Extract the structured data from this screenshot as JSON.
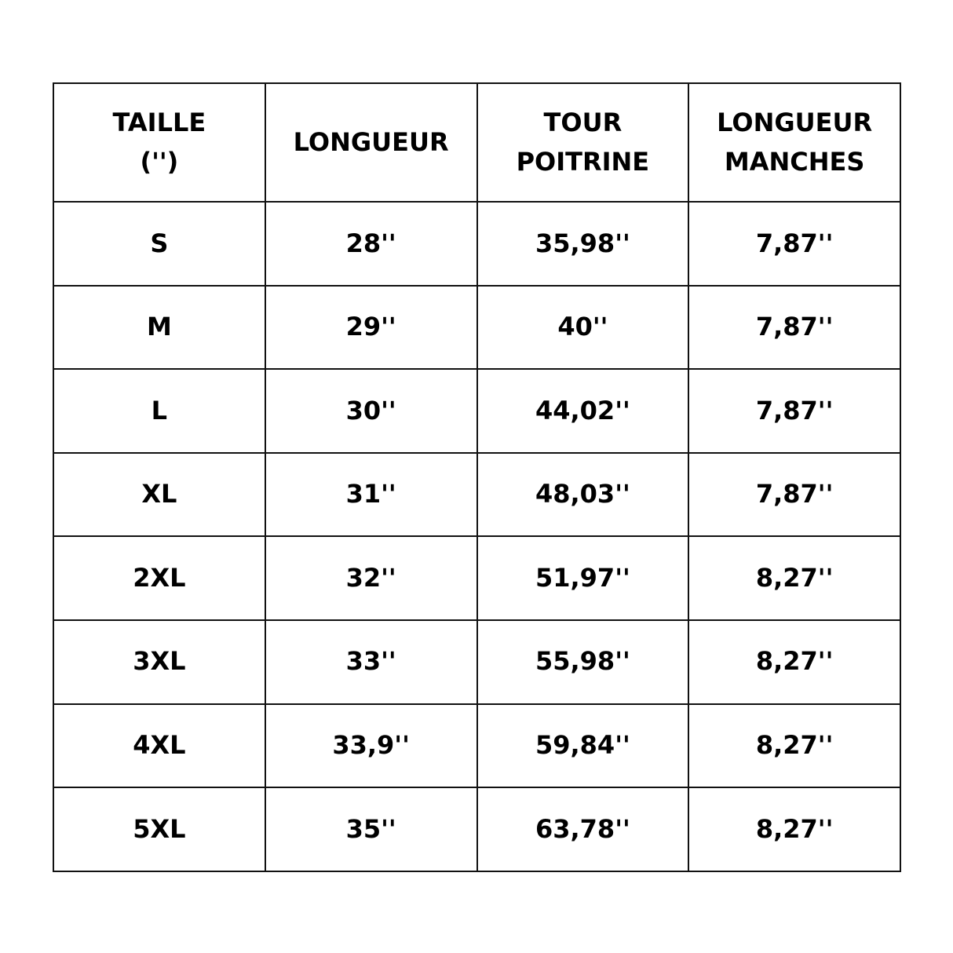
{
  "header": [
    [
      "TAILLE",
      "('')"
    ],
    [
      "LONGUEUR"
    ],
    [
      "TOUR",
      "POITRINE"
    ],
    [
      "LONGUEUR",
      "MANCHES"
    ]
  ],
  "rows": [
    [
      "S",
      "28''",
      "35,98''",
      "7,87''"
    ],
    [
      "M",
      "29''",
      "40''",
      "7,87''"
    ],
    [
      "L",
      "30''",
      "44,02''",
      "7,87''"
    ],
    [
      "XL",
      "31''",
      "48,03''",
      "7,87''"
    ],
    [
      "2XL",
      "32''",
      "51,97''",
      "8,27''"
    ],
    [
      "3XL",
      "33''",
      "55,98''",
      "8,27''"
    ],
    [
      "4XL",
      "33,9''",
      "59,84''",
      "8,27''"
    ],
    [
      "5XL",
      "35''",
      "63,78''",
      "8,27''"
    ]
  ]
}
